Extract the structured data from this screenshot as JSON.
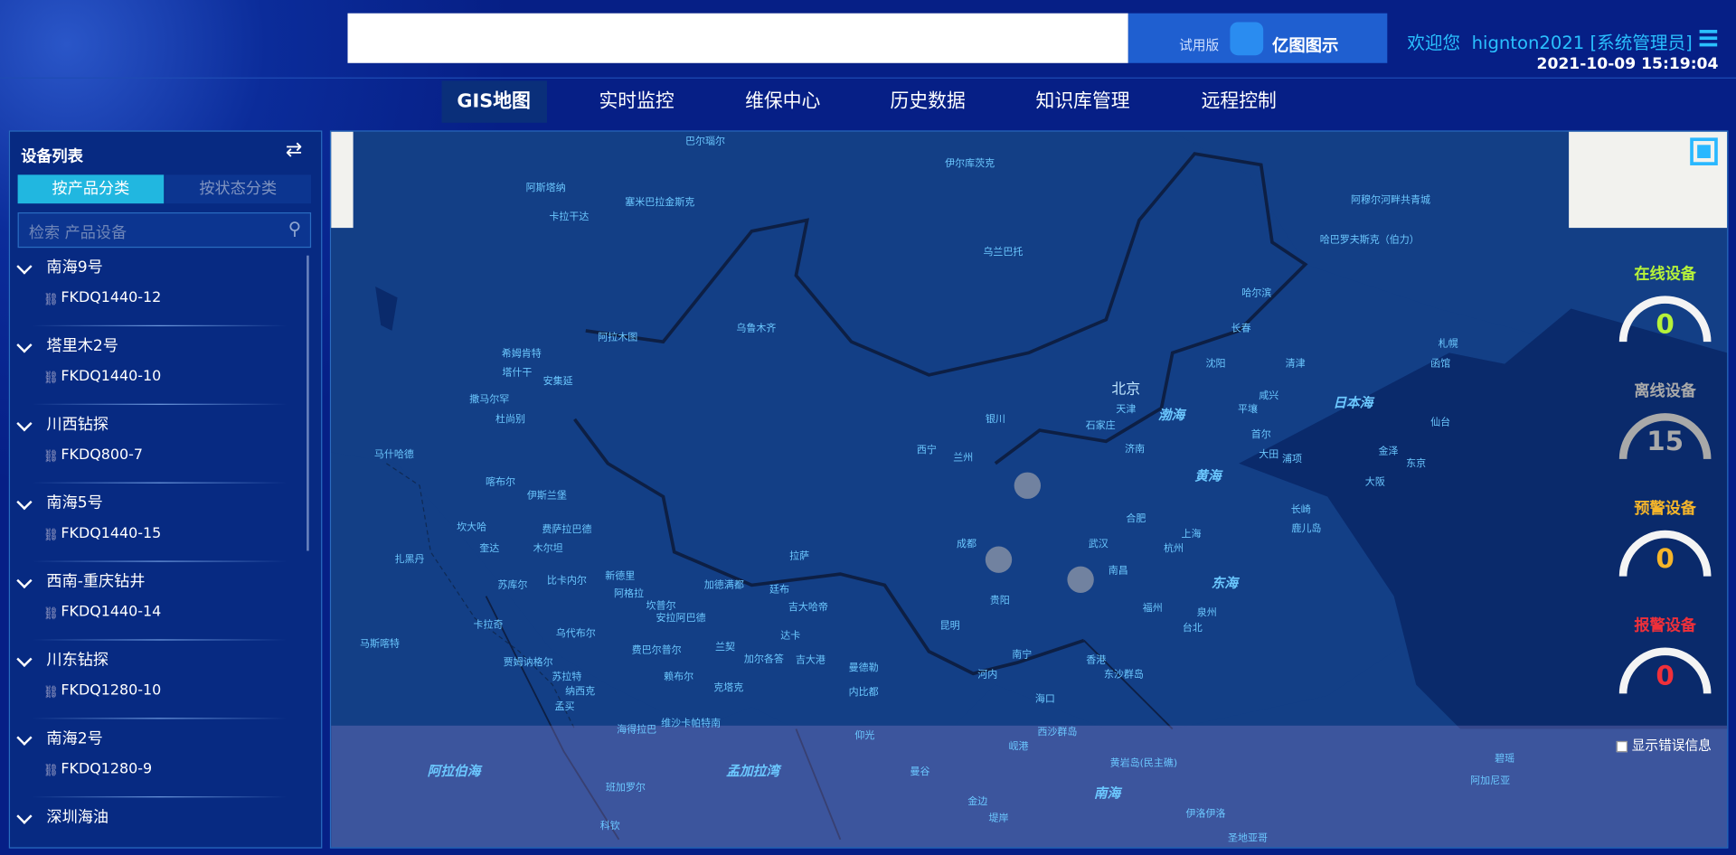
{
  "header": {
    "trial_badge": "试用版",
    "brand": "亿图图示",
    "welcome": "欢迎您",
    "user": "hignton2021",
    "role": "[系统管理员]",
    "datetime": "2021-10-09 15:19:04"
  },
  "nav": {
    "items": [
      "GIS地图",
      "实时监控",
      "维保中心",
      "历史数据",
      "知识库管理",
      "远程控制"
    ],
    "active": 0
  },
  "sidebar": {
    "title": "设备列表",
    "tabs": [
      "按产品分类",
      "按状态分类"
    ],
    "active_tab": 0,
    "search_placeholder": "检索 产品设备",
    "groups": [
      {
        "name": "南海9号",
        "devices": [
          "FKDQ1440-12"
        ]
      },
      {
        "name": "塔里木2号",
        "devices": [
          "FKDQ1440-10"
        ]
      },
      {
        "name": "川西钻探",
        "devices": [
          "FKDQ800-7"
        ]
      },
      {
        "name": "南海5号",
        "devices": [
          "FKDQ1440-15"
        ]
      },
      {
        "name": "西南-重庆钻井",
        "devices": [
          "FKDQ1440-14"
        ]
      },
      {
        "name": "川东钻探",
        "devices": [
          "FKDQ1280-10"
        ]
      },
      {
        "name": "南海2号",
        "devices": [
          "FKDQ1280-9"
        ]
      },
      {
        "name": "深圳海油",
        "devices": []
      }
    ]
  },
  "status": [
    {
      "label": "在线设备",
      "value": "0",
      "color": "#b6f23a"
    },
    {
      "label": "离线设备",
      "value": "15",
      "color": "#a9a9a9"
    },
    {
      "label": "预警设备",
      "value": "0",
      "color": "#f5b52a"
    },
    {
      "label": "报警设备",
      "value": "0",
      "color": "#f0303a"
    }
  ],
  "map": {
    "show_errors_label": "显示错误信息",
    "labels": [
      "巴尔瑙尔",
      "伊尔库茨克",
      "阿斯塔纳",
      "塞米巴拉金斯克",
      "卡拉干达",
      "乌兰巴托",
      "阿穆尔河畔共青城",
      "哈巴罗夫斯克（伯力）",
      "哈尔滨",
      "长春",
      "札幌",
      "沈阳",
      "清津",
      "函馆",
      "阿拉木图",
      "乌鲁木齐",
      "希姆肯特",
      "塔什干",
      "安集延",
      "北京",
      "天津",
      "咸兴",
      "日本海",
      "仙台",
      "撒马尔罕",
      "杜尚别",
      "银川",
      "石家庄",
      "渤海",
      "平壤",
      "首尔",
      "马什哈德",
      "西宁",
      "兰州",
      "济南",
      "大田",
      "浦项",
      "金泽",
      "东京",
      "大阪",
      "黄海",
      "喀布尔",
      "伊斯兰堡",
      "坎大哈",
      "费萨拉巴德",
      "奎达",
      "木尔坦",
      "合肥",
      "上海",
      "长崎",
      "鹿儿岛",
      "扎黑丹",
      "拉萨",
      "成都",
      "武汉",
      "杭州",
      "南昌",
      "东海",
      "苏库尔",
      "比卡内尔",
      "新德里",
      "加德满都",
      "廷布",
      "阿格拉",
      "坎普尔",
      "安拉阿巴德",
      "吉大哈帝",
      "贵阳",
      "福州",
      "昆明",
      "卡拉奇",
      "乌代布尔",
      "达卡",
      "泉州",
      "台北",
      "马斯喀特",
      "贾姆讷格尔",
      "费巴尔普尔",
      "兰契",
      "加尔各答",
      "吉大港",
      "曼德勒",
      "南宁",
      "香港",
      "东沙群岛",
      "苏拉特",
      "纳西克",
      "孟买",
      "赖布尔",
      "克塔克",
      "内比都",
      "河内",
      "海口",
      "海得拉巴",
      "维沙卡帕特南",
      "仰光",
      "西沙群岛",
      "岘港",
      "阿拉伯海",
      "孟加拉湾",
      "黄岩岛(民主礁)",
      "曼谷",
      "碧瑶",
      "阿加尼亚",
      "南海",
      "班加罗尔",
      "金边",
      "伊洛伊洛",
      "科钦",
      "堤岸",
      "圣地亚哥"
    ]
  }
}
